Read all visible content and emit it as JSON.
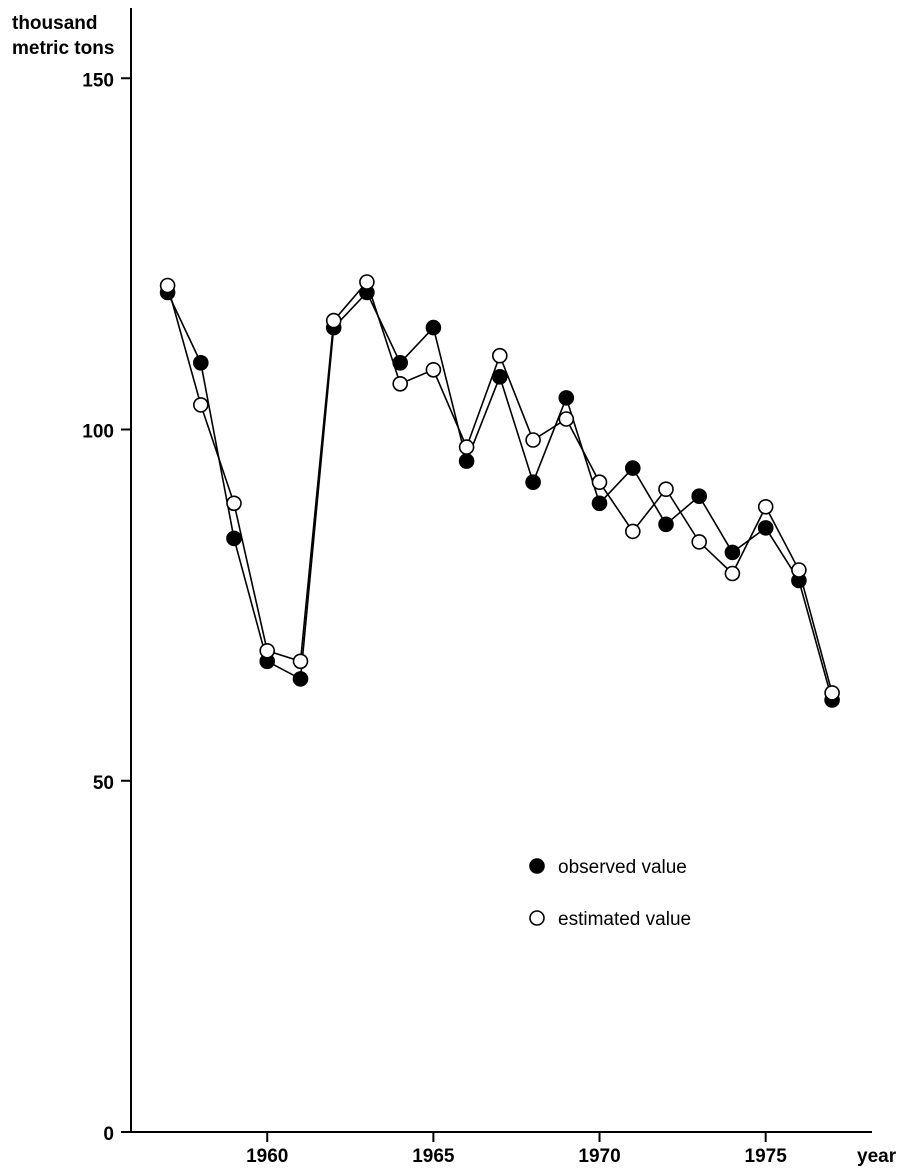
{
  "chart_data": {
    "type": "line",
    "ylabel": "thousand\nmetric tons",
    "xlabel": "year",
    "xlim": [
      1955.9,
      1978.2
    ],
    "ylim": [
      0,
      160
    ],
    "x_ticks": [
      1960,
      1965,
      1970,
      1975
    ],
    "x_tick_labels": [
      "1960",
      "1965",
      "1970",
      "1975"
    ],
    "y_ticks": [
      0,
      50,
      100,
      150
    ],
    "y_tick_labels": [
      "0",
      "50",
      "100",
      "150"
    ],
    "grid": false,
    "legend_position": "center-right",
    "x": [
      1957,
      1958,
      1959,
      1960,
      1961,
      1962,
      1963,
      1964,
      1965,
      1966,
      1967,
      1968,
      1969,
      1970,
      1971,
      1972,
      1973,
      1974,
      1975,
      1976,
      1977
    ],
    "series": [
      {
        "name": "observed value",
        "marker": "filled-circle",
        "color": "#000000",
        "values": [
          119.5,
          109.5,
          84.5,
          67,
          64.5,
          114.5,
          119.5,
          109.5,
          114.5,
          95.5,
          107.5,
          92.5,
          104.5,
          89.5,
          94.5,
          86.5,
          90.5,
          82.5,
          86,
          78.5,
          61.5
        ]
      },
      {
        "name": "estimated value",
        "marker": "open-circle",
        "color": "#000000",
        "values": [
          120.5,
          103.5,
          89.5,
          68.5,
          67,
          115.5,
          121,
          106.5,
          108.5,
          97.5,
          110.5,
          98.5,
          101.5,
          92.5,
          85.5,
          91.5,
          84,
          79.5,
          89,
          80,
          62.5
        ]
      }
    ]
  }
}
